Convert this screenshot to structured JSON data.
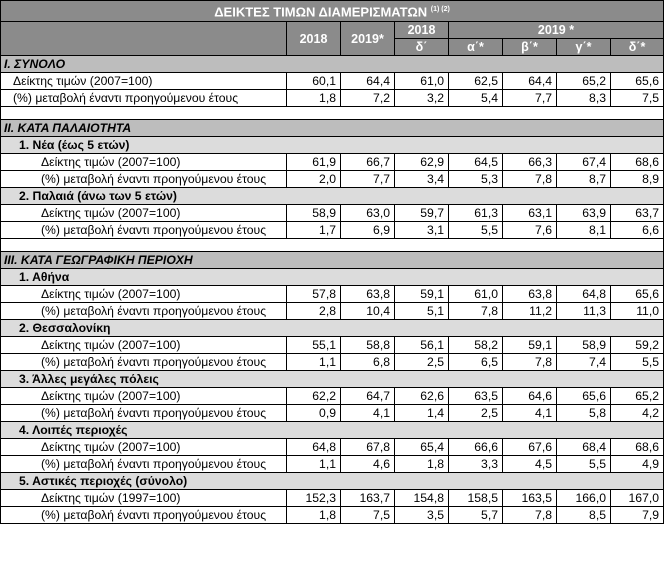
{
  "title": "ΔΕΙΚΤΕΣ ΤΙΜΩΝ ΔΙΑΜΕΡΙΣΜΑΤΩΝ",
  "title_notes": "(1) (2)",
  "header": {
    "col_2018": "2018",
    "col_2019": "2019*",
    "group_2018": "2018",
    "group_2019": "2019 *",
    "q_2018": "δ΄",
    "q_2019": [
      "α΄*",
      "β΄*",
      "γ΄*",
      "δ΄*"
    ]
  },
  "sections": [
    {
      "title": "I. ΣΥΝΟΛΟ",
      "groups": [
        {
          "title": "",
          "rows": [
            {
              "label": "Δείκτης τιμών (2007=100)",
              "values": [
                "60,1",
                "64,4",
                "61,0",
                "62,5",
                "64,4",
                "65,2",
                "65,6"
              ]
            },
            {
              "label": "(%) μεταβολή έναντι προηγούμενου έτους",
              "values": [
                "1,8",
                "7,2",
                "3,2",
                "5,4",
                "7,7",
                "8,3",
                "7,5"
              ]
            }
          ]
        }
      ]
    },
    {
      "title": "II. ΚΑΤΑ ΠΑΛΑΙΟΤΗΤΑ",
      "groups": [
        {
          "title": "1.  Νέα (έως 5 ετών)",
          "rows": [
            {
              "label": "Δείκτης τιμών (2007=100)",
              "values": [
                "61,9",
                "66,7",
                "62,9",
                "64,5",
                "66,3",
                "67,4",
                "68,6"
              ]
            },
            {
              "label": "(%) μεταβολή έναντι προηγούμενου έτους",
              "values": [
                "2,0",
                "7,7",
                "3,4",
                "5,3",
                "7,8",
                "8,7",
                "8,9"
              ]
            }
          ]
        },
        {
          "title": "2. Παλαιά (άνω των 5 ετών)",
          "rows": [
            {
              "label": "Δείκτης τιμών (2007=100)",
              "values": [
                "58,9",
                "63,0",
                "59,7",
                "61,3",
                "63,1",
                "63,9",
                "63,7"
              ]
            },
            {
              "label": "(%) μεταβολή έναντι προηγούμενου έτους",
              "values": [
                "1,7",
                "6,9",
                "3,1",
                "5,5",
                "7,6",
                "8,1",
                "6,6"
              ]
            }
          ]
        }
      ]
    },
    {
      "title": "III. ΚΑΤΑ ΓΕΩΓΡΑΦΙΚΗ ΠΕΡΙΟΧΗ",
      "groups": [
        {
          "title": "1.  Αθήνα",
          "rows": [
            {
              "label": "Δείκτης τιμών (2007=100)",
              "values": [
                "57,8",
                "63,8",
                "59,1",
                "61,0",
                "63,8",
                "64,8",
                "65,6"
              ]
            },
            {
              "label": "(%) μεταβολή έναντι προηγούμενου έτους",
              "values": [
                "2,8",
                "10,4",
                "5,1",
                "7,8",
                "11,2",
                "11,3",
                "11,0"
              ]
            }
          ]
        },
        {
          "title": "2.  Θεσσαλονίκη",
          "rows": [
            {
              "label": "Δείκτης τιμών (2007=100)",
              "values": [
                "55,1",
                "58,8",
                "56,1",
                "58,2",
                "59,1",
                "58,9",
                "59,2"
              ]
            },
            {
              "label": "(%) μεταβολή έναντι προηγούμενου έτους",
              "values": [
                "1,1",
                "6,8",
                "2,5",
                "6,5",
                "7,8",
                "7,4",
                "5,5"
              ]
            }
          ]
        },
        {
          "title": "3.  Άλλες μεγάλες πόλεις",
          "rows": [
            {
              "label": "Δείκτης τιμών (2007=100)",
              "values": [
                "62,2",
                "64,7",
                "62,6",
                "63,5",
                "64,6",
                "65,6",
                "65,2"
              ]
            },
            {
              "label": "(%) μεταβολή έναντι προηγούμενου έτους",
              "values": [
                "0,9",
                "4,1",
                "1,4",
                "2,5",
                "4,1",
                "5,8",
                "4,2"
              ]
            }
          ]
        },
        {
          "title": "4.  Λοιπές περιοχές",
          "rows": [
            {
              "label": "Δείκτης τιμών (2007=100)",
              "values": [
                "64,8",
                "67,8",
                "65,4",
                "66,6",
                "67,6",
                "68,4",
                "68,6"
              ]
            },
            {
              "label": "(%) μεταβολή έναντι προηγούμενου έτους",
              "values": [
                "1,1",
                "4,6",
                "1,8",
                "3,3",
                "4,5",
                "5,5",
                "4,9"
              ]
            }
          ]
        },
        {
          "title": "5.  Αστικές περιοχές (σύνολο)",
          "rows": [
            {
              "label": "Δείκτης τιμών (1997=100)",
              "values": [
                "152,3",
                "163,7",
                "154,8",
                "158,5",
                "163,5",
                "166,0",
                "167,0"
              ]
            },
            {
              "label": "(%) μεταβολή έναντι προηγούμενου έτους",
              "values": [
                "1,8",
                "7,5",
                "3,5",
                "5,7",
                "7,8",
                "8,5",
                "7,9"
              ]
            }
          ]
        }
      ]
    }
  ]
}
